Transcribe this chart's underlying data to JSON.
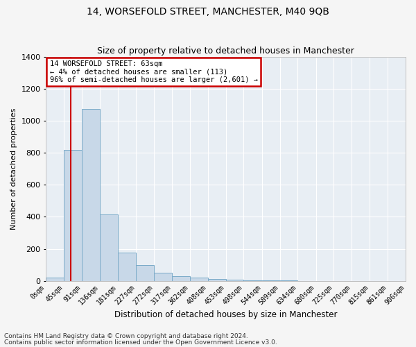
{
  "title": "14, WORSEFOLD STREET, MANCHESTER, M40 9QB",
  "subtitle": "Size of property relative to detached houses in Manchester",
  "xlabel": "Distribution of detached houses by size in Manchester",
  "ylabel": "Number of detached properties",
  "bin_edges": [
    0,
    45,
    91,
    136,
    181,
    227,
    272,
    317,
    362,
    408,
    453,
    498,
    544,
    589,
    634,
    680,
    725,
    770,
    815,
    861,
    906
  ],
  "bar_heights": [
    20,
    820,
    1075,
    415,
    175,
    100,
    50,
    30,
    20,
    10,
    5,
    2,
    1,
    1,
    0,
    0,
    0,
    0,
    0,
    0
  ],
  "bar_color": "#c8d8e8",
  "bar_edgecolor": "#7aaac8",
  "property_size": 63,
  "property_line_color": "#cc0000",
  "annotation_text": "14 WORSEFOLD STREET: 63sqm\n← 4% of detached houses are smaller (113)\n96% of semi-detached houses are larger (2,601) →",
  "annotation_box_color": "#cc0000",
  "ylim": [
    0,
    1400
  ],
  "yticks": [
    0,
    200,
    400,
    600,
    800,
    1000,
    1200,
    1400
  ],
  "background_color": "#e8eef4",
  "footer_line1": "Contains HM Land Registry data © Crown copyright and database right 2024.",
  "footer_line2": "Contains public sector information licensed under the Open Government Licence v3.0.",
  "grid_color": "#ffffff",
  "title_fontsize": 10,
  "subtitle_fontsize": 9,
  "ylabel_fontsize": 8,
  "xlabel_fontsize": 8.5,
  "ytick_fontsize": 8,
  "xtick_fontsize": 7,
  "annotation_fontsize": 7.5,
  "footer_fontsize": 6.5
}
